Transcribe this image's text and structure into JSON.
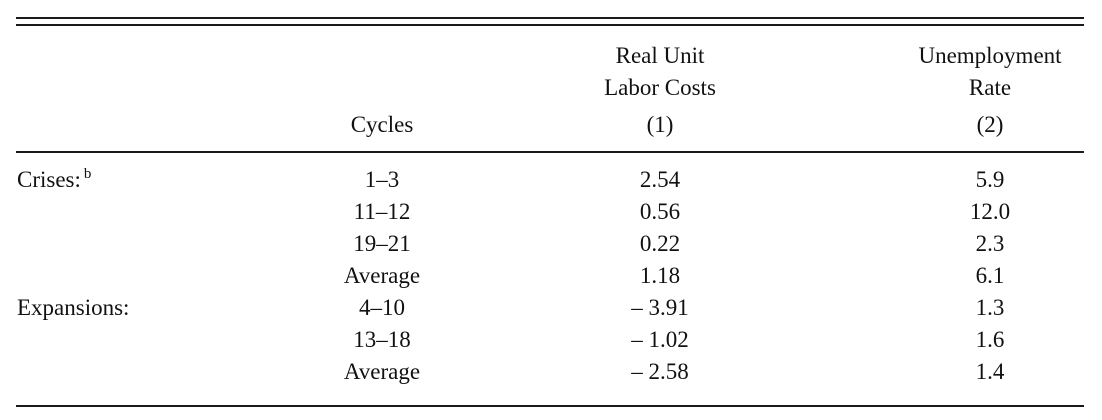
{
  "header": {
    "col0": "",
    "col1": "Cycles",
    "col2_line1": "Real Unit",
    "col2_line2": "Labor Costs",
    "col2_line3": "(1)",
    "col3_line1": "Unemployment",
    "col3_line2": "Rate",
    "col3_line3": "(2)"
  },
  "groups": {
    "crises_label": "Crises:",
    "crises_footnote": "b",
    "expansions_label": "Expansions:"
  },
  "rows": [
    {
      "cycles": "1–3",
      "rulc": "2.54",
      "unemp": "5.9"
    },
    {
      "cycles": "11–12",
      "rulc": "0.56",
      "unemp": "12.0"
    },
    {
      "cycles": "19–21",
      "rulc": "0.22",
      "unemp": "2.3"
    },
    {
      "cycles": "Average",
      "rulc": "1.18",
      "unemp": "6.1"
    },
    {
      "cycles": "4–10",
      "rulc": "– 3.91",
      "unemp": "1.3"
    },
    {
      "cycles": "13–18",
      "rulc": "– 1.02",
      "unemp": "1.6"
    },
    {
      "cycles": "Average",
      "rulc": "– 2.58",
      "unemp": "1.4"
    }
  ]
}
